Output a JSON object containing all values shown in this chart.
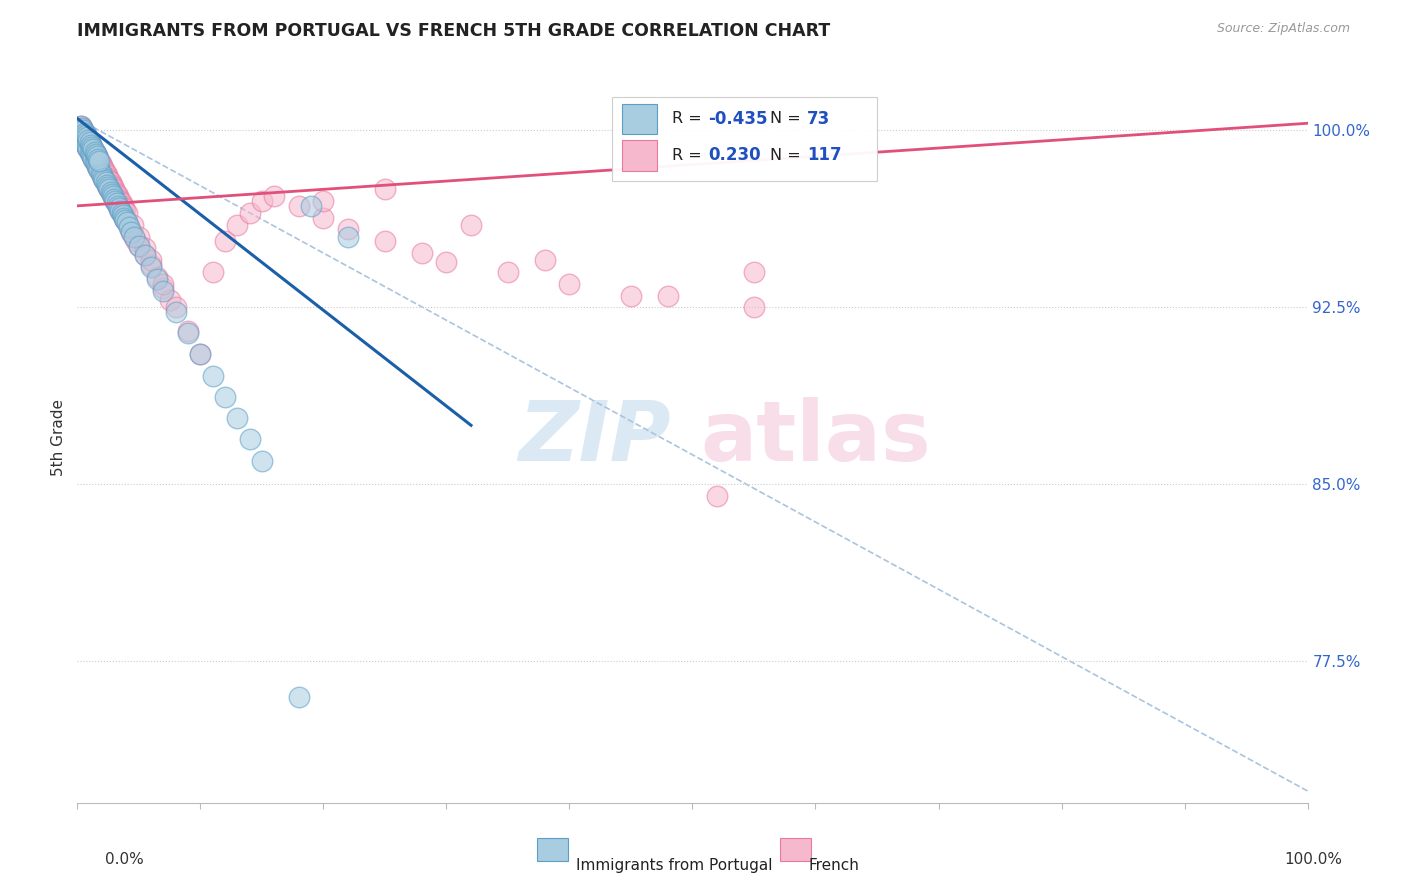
{
  "title": "IMMIGRANTS FROM PORTUGAL VS FRENCH 5TH GRADE CORRELATION CHART",
  "source": "Source: ZipAtlas.com",
  "ylabel": "5th Grade",
  "ytick_labels": [
    "100.0%",
    "92.5%",
    "85.0%",
    "77.5%"
  ],
  "ytick_values": [
    1.0,
    0.925,
    0.85,
    0.775
  ],
  "xlim": [
    0.0,
    1.0
  ],
  "ylim": [
    0.715,
    1.025
  ],
  "legend_blue_r": "-0.435",
  "legend_blue_n": "73",
  "legend_pink_r": "0.230",
  "legend_pink_n": "117",
  "blue_fill": "#a8cce0",
  "pink_fill": "#f5b8cc",
  "blue_edge": "#5b9fc7",
  "pink_edge": "#e87aa0",
  "blue_line_color": "#1a5fa8",
  "pink_line_color": "#e0507a",
  "dash_line_color": "#aac4e0",
  "legend_r_color": "#2050c0",
  "legend_n_color": "#2050c0",
  "blue_scatter_x": [
    0.003,
    0.004,
    0.005,
    0.006,
    0.007,
    0.008,
    0.009,
    0.01,
    0.011,
    0.012,
    0.013,
    0.014,
    0.015,
    0.016,
    0.017,
    0.018,
    0.019,
    0.02,
    0.021,
    0.022,
    0.023,
    0.024,
    0.025,
    0.026,
    0.027,
    0.028,
    0.029,
    0.03,
    0.031,
    0.032,
    0.033,
    0.034,
    0.035,
    0.036,
    0.037,
    0.038,
    0.039,
    0.04,
    0.042,
    0.044,
    0.046,
    0.05,
    0.055,
    0.06,
    0.065,
    0.07,
    0.08,
    0.09,
    0.1,
    0.11,
    0.12,
    0.13,
    0.14,
    0.15,
    0.003,
    0.004,
    0.005,
    0.006,
    0.007,
    0.008,
    0.009,
    0.01,
    0.011,
    0.012,
    0.013,
    0.014,
    0.015,
    0.016,
    0.017,
    0.018,
    0.18,
    0.22,
    0.19
  ],
  "blue_scatter_y": [
    0.998,
    0.997,
    0.996,
    0.995,
    0.994,
    0.993,
    0.992,
    0.991,
    0.99,
    0.989,
    0.988,
    0.987,
    0.986,
    0.985,
    0.984,
    0.983,
    0.982,
    0.981,
    0.98,
    0.979,
    0.978,
    0.977,
    0.976,
    0.975,
    0.974,
    0.973,
    0.972,
    0.971,
    0.97,
    0.969,
    0.968,
    0.967,
    0.966,
    0.965,
    0.964,
    0.963,
    0.962,
    0.961,
    0.959,
    0.957,
    0.955,
    0.951,
    0.947,
    0.942,
    0.937,
    0.932,
    0.923,
    0.914,
    0.905,
    0.896,
    0.887,
    0.878,
    0.869,
    0.86,
    1.002,
    1.001,
    1.0,
    0.999,
    0.998,
    0.997,
    0.996,
    0.995,
    0.994,
    0.993,
    0.992,
    0.991,
    0.99,
    0.989,
    0.988,
    0.987,
    0.76,
    0.955,
    0.968
  ],
  "pink_scatter_x": [
    0.003,
    0.004,
    0.005,
    0.006,
    0.007,
    0.008,
    0.009,
    0.01,
    0.011,
    0.012,
    0.013,
    0.014,
    0.015,
    0.016,
    0.017,
    0.018,
    0.019,
    0.02,
    0.021,
    0.022,
    0.023,
    0.024,
    0.025,
    0.026,
    0.027,
    0.028,
    0.029,
    0.03,
    0.031,
    0.032,
    0.033,
    0.034,
    0.035,
    0.036,
    0.037,
    0.038,
    0.039,
    0.04,
    0.042,
    0.044,
    0.046,
    0.048,
    0.05,
    0.055,
    0.06,
    0.065,
    0.07,
    0.075,
    0.003,
    0.004,
    0.005,
    0.006,
    0.007,
    0.008,
    0.009,
    0.01,
    0.011,
    0.012,
    0.013,
    0.014,
    0.015,
    0.016,
    0.017,
    0.018,
    0.019,
    0.02,
    0.021,
    0.022,
    0.023,
    0.024,
    0.025,
    0.026,
    0.027,
    0.028,
    0.029,
    0.03,
    0.031,
    0.032,
    0.033,
    0.034,
    0.035,
    0.036,
    0.037,
    0.038,
    0.039,
    0.04,
    0.045,
    0.05,
    0.055,
    0.06,
    0.07,
    0.08,
    0.09,
    0.1,
    0.11,
    0.12,
    0.13,
    0.14,
    0.15,
    0.16,
    0.18,
    0.2,
    0.22,
    0.25,
    0.28,
    0.3,
    0.35,
    0.4,
    0.45,
    0.52,
    0.55,
    0.48,
    0.38,
    0.32,
    0.2,
    0.25,
    0.55
  ],
  "pink_scatter_y": [
    0.998,
    0.997,
    0.996,
    0.995,
    0.994,
    0.993,
    0.992,
    0.991,
    0.99,
    0.989,
    0.988,
    0.987,
    0.986,
    0.985,
    0.984,
    0.983,
    0.982,
    0.981,
    0.98,
    0.979,
    0.978,
    0.977,
    0.976,
    0.975,
    0.974,
    0.973,
    0.972,
    0.971,
    0.97,
    0.969,
    0.968,
    0.967,
    0.966,
    0.965,
    0.964,
    0.963,
    0.962,
    0.961,
    0.959,
    0.957,
    0.955,
    0.953,
    0.951,
    0.947,
    0.943,
    0.938,
    0.933,
    0.928,
    1.002,
    1.001,
    1.0,
    0.999,
    0.998,
    0.997,
    0.996,
    0.995,
    0.994,
    0.993,
    0.992,
    0.991,
    0.99,
    0.989,
    0.988,
    0.987,
    0.986,
    0.985,
    0.984,
    0.983,
    0.982,
    0.981,
    0.98,
    0.979,
    0.978,
    0.977,
    0.976,
    0.975,
    0.974,
    0.973,
    0.972,
    0.971,
    0.97,
    0.969,
    0.968,
    0.967,
    0.966,
    0.965,
    0.96,
    0.955,
    0.95,
    0.945,
    0.935,
    0.925,
    0.915,
    0.905,
    0.94,
    0.953,
    0.96,
    0.965,
    0.97,
    0.972,
    0.968,
    0.963,
    0.958,
    0.953,
    0.948,
    0.944,
    0.94,
    0.935,
    0.93,
    0.845,
    0.925,
    0.93,
    0.945,
    0.96,
    0.97,
    0.975,
    0.94
  ],
  "blue_line_x": [
    0.0,
    0.32
  ],
  "blue_line_y": [
    1.005,
    0.875
  ],
  "pink_line_x": [
    0.0,
    1.0
  ],
  "pink_line_y": [
    0.968,
    1.003
  ],
  "dash_line_x": [
    0.0,
    1.0
  ],
  "dash_line_y": [
    1.005,
    0.72
  ]
}
